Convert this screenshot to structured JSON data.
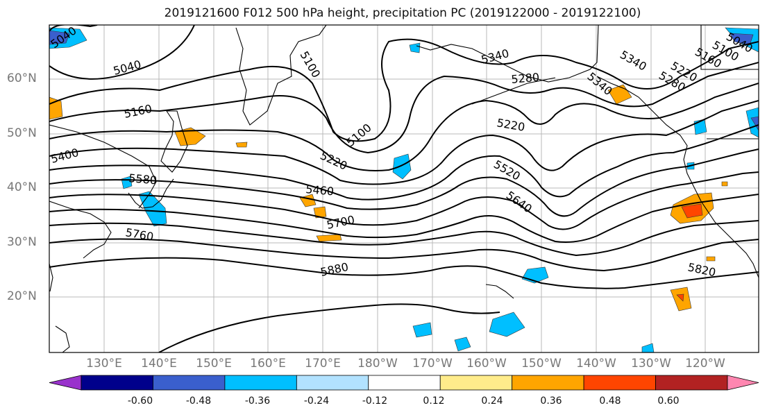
{
  "title": "2019121600 F012 500 hPa height, precipitation PC (2019122000 - 2019122100)",
  "lat_labels": [
    "60°N",
    "50°N",
    "40°N",
    "30°N",
    "20°N"
  ],
  "lon_labels": [
    "130°E",
    "140°E",
    "150°E",
    "160°E",
    "170°E",
    "180°W",
    "170°W",
    "160°W",
    "150°W",
    "140°W",
    "130°W",
    "120°W"
  ],
  "contour_labels": [
    "5040",
    "5040",
    "5100",
    "5100",
    "5160",
    "5340",
    "5280",
    "5220",
    "5340",
    "5280",
    "5220",
    "5160",
    "5100",
    "5040",
    "5400",
    "5220",
    "5520",
    "5580",
    "5460",
    "5640",
    "5700",
    "5760",
    "5880",
    "5820",
    "5340"
  ],
  "colorbar": {
    "ticks": [
      "-0.60",
      "-0.48",
      "-0.36",
      "-0.24",
      "-0.12",
      "0.12",
      "0.24",
      "0.36",
      "0.48",
      "0.60"
    ],
    "colors": [
      "#9932cc",
      "#00008b",
      "#3a5fcd",
      "#00bfff",
      "#b2e2ff",
      "#ffffff",
      "#ffec8b",
      "#ffa500",
      "#ff4500",
      "#b22222",
      "#ff86b0"
    ]
  }
}
